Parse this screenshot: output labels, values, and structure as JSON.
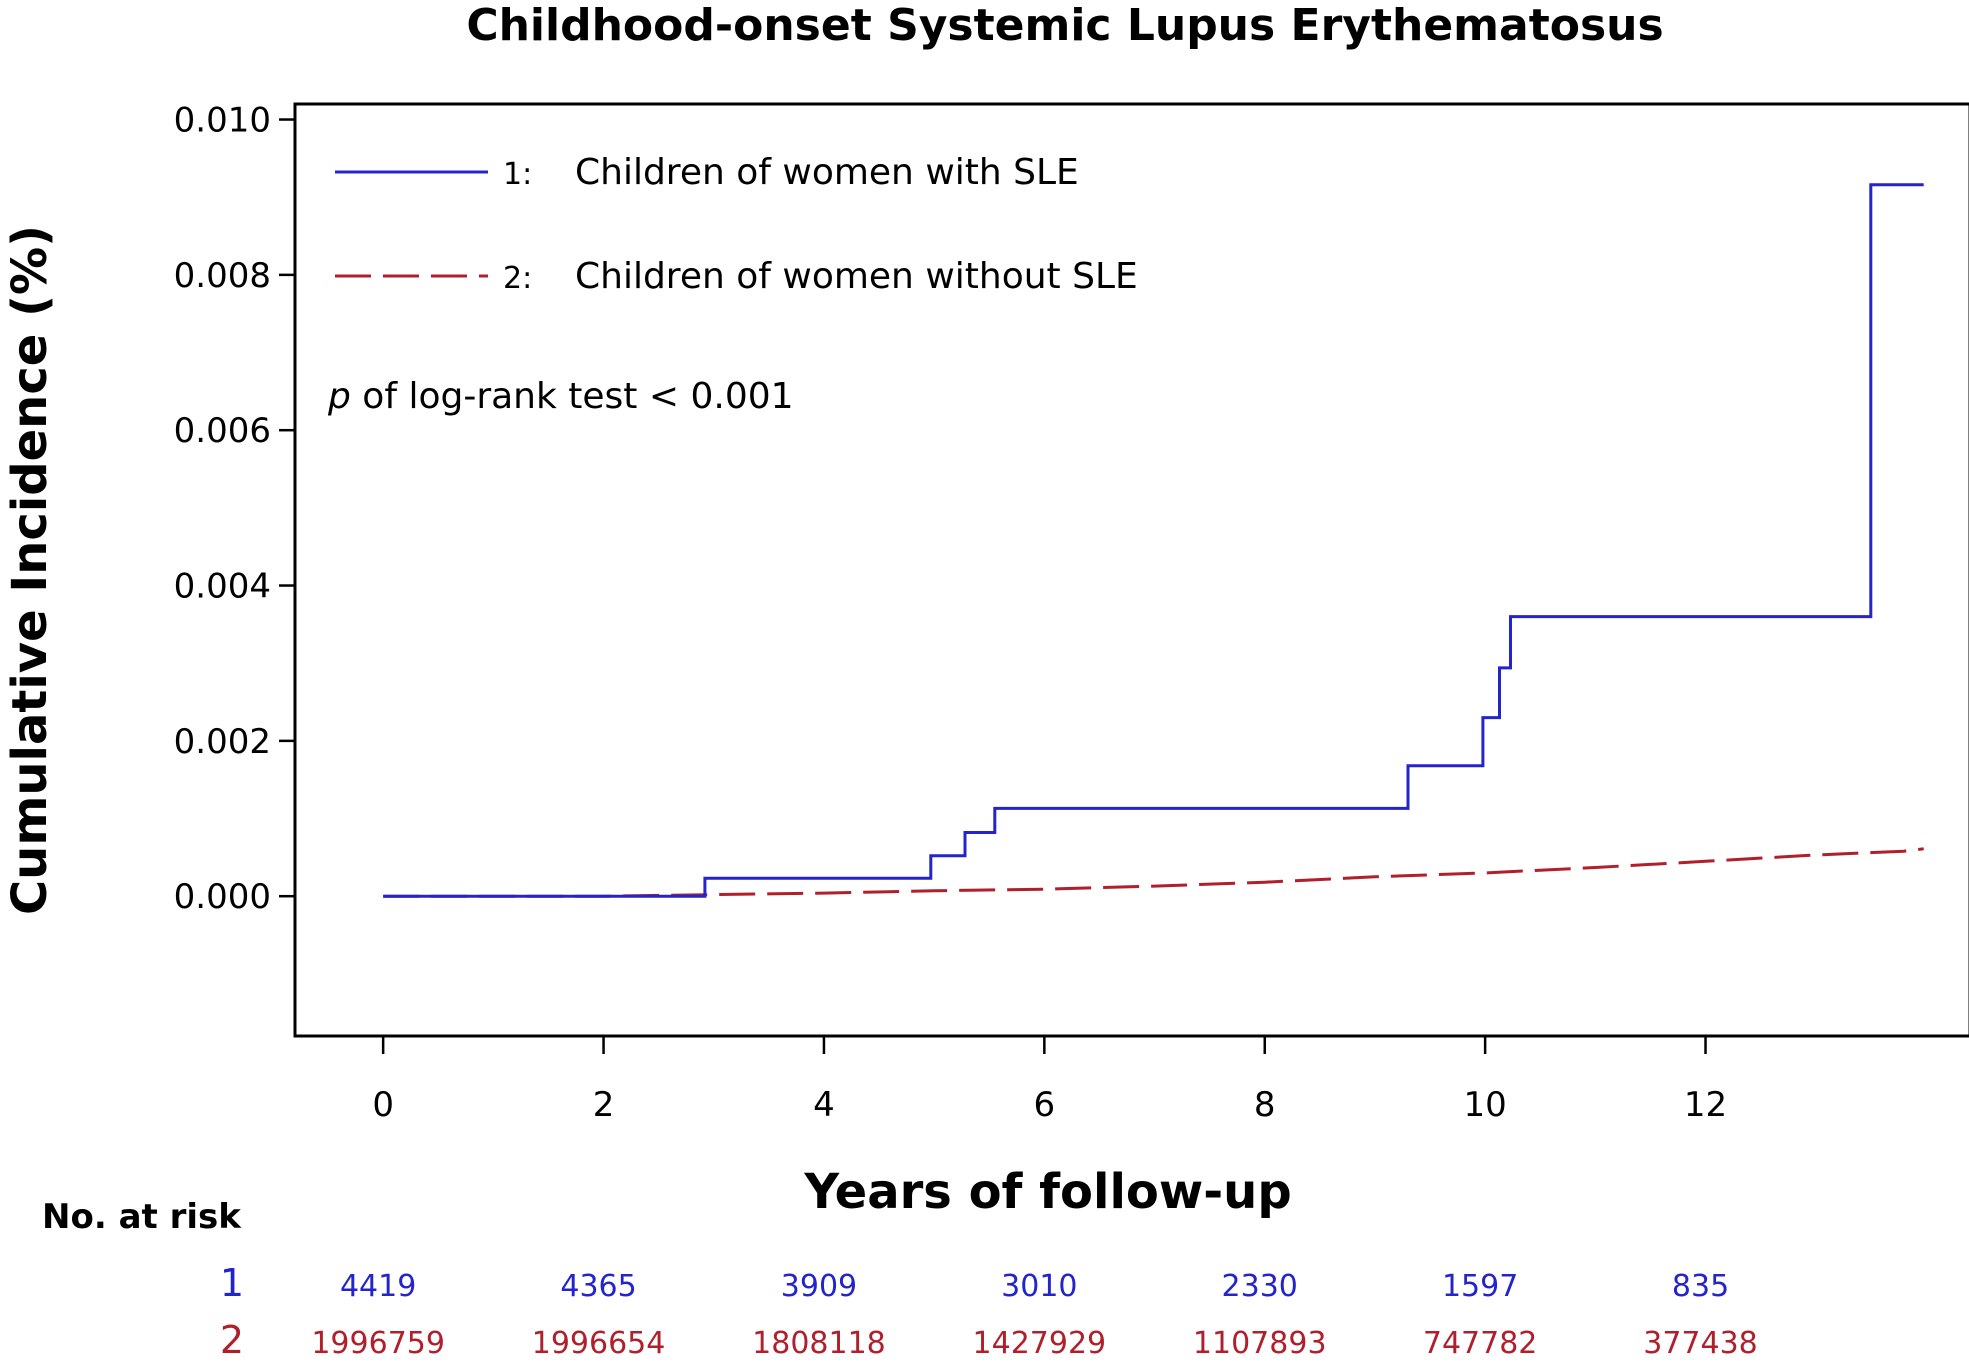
{
  "chart_data": {
    "type": "line",
    "title": "Childhood-onset Systemic Lupus Erythematosus",
    "xlabel": "Years of follow-up",
    "ylabel": "Cumulative Incidence (%)",
    "xlim": [
      -0.8,
      14.4
    ],
    "ylim": [
      -0.0018,
      0.0102
    ],
    "x_ticks": [
      0,
      2,
      4,
      6,
      8,
      10,
      12
    ],
    "y_ticks": [
      0,
      0.002,
      0.004,
      0.006,
      0.008,
      0.01
    ],
    "y_tick_labels": [
      "0.000",
      "0.002",
      "0.004",
      "0.006",
      "0.008",
      "0.010"
    ],
    "annotation_italic": "p",
    "annotation_rest": " of log-rank test < 0.001",
    "legend_position": "top-left",
    "series": [
      {
        "id": "1",
        "legend_num": "1:",
        "name": "Children of women with SLE",
        "color": "#2424cc",
        "dash": "solid",
        "step": true,
        "points": [
          [
            0,
            0
          ],
          [
            2.92,
            0
          ],
          [
            2.92,
            0.00023
          ],
          [
            4.97,
            0.00023
          ],
          [
            4.97,
            0.00052
          ],
          [
            5.28,
            0.00052
          ],
          [
            5.28,
            0.00082
          ],
          [
            5.55,
            0.00082
          ],
          [
            5.55,
            0.00113
          ],
          [
            9.3,
            0.00113
          ],
          [
            9.3,
            0.00168
          ],
          [
            9.98,
            0.00168
          ],
          [
            9.98,
            0.0023
          ],
          [
            10.13,
            0.0023
          ],
          [
            10.13,
            0.00294
          ],
          [
            10.23,
            0.00294
          ],
          [
            10.23,
            0.0036
          ],
          [
            13.5,
            0.0036
          ],
          [
            13.5,
            0.00916
          ],
          [
            13.98,
            0.00916
          ]
        ]
      },
      {
        "id": "2",
        "legend_num": "2:",
        "name": "Children of women without SLE",
        "color": "#b01f2c",
        "dash": "long-dash",
        "step": false,
        "points": [
          [
            0,
            0
          ],
          [
            2,
            0
          ],
          [
            3,
            2e-05
          ],
          [
            4,
            4e-05
          ],
          [
            5,
            7e-05
          ],
          [
            6,
            9e-05
          ],
          [
            7,
            0.00013
          ],
          [
            8,
            0.00018
          ],
          [
            9,
            0.00025
          ],
          [
            10,
            0.0003
          ],
          [
            11,
            0.00037
          ],
          [
            12,
            0.00045
          ],
          [
            13,
            0.00053
          ],
          [
            13.8,
            0.00058
          ],
          [
            13.98,
            0.00061
          ]
        ]
      }
    ]
  },
  "risk_table": {
    "header": "No. at risk",
    "rows": [
      {
        "id": "1",
        "color": "#2424cc",
        "values": [
          "4419",
          "4365",
          "3909",
          "3010",
          "2330",
          "1597",
          "835"
        ]
      },
      {
        "id": "2",
        "color": "#b01f2c",
        "values": [
          "1996759",
          "1996654",
          "1808118",
          "1427929",
          "1107893",
          "747782",
          "377438"
        ]
      }
    ]
  }
}
